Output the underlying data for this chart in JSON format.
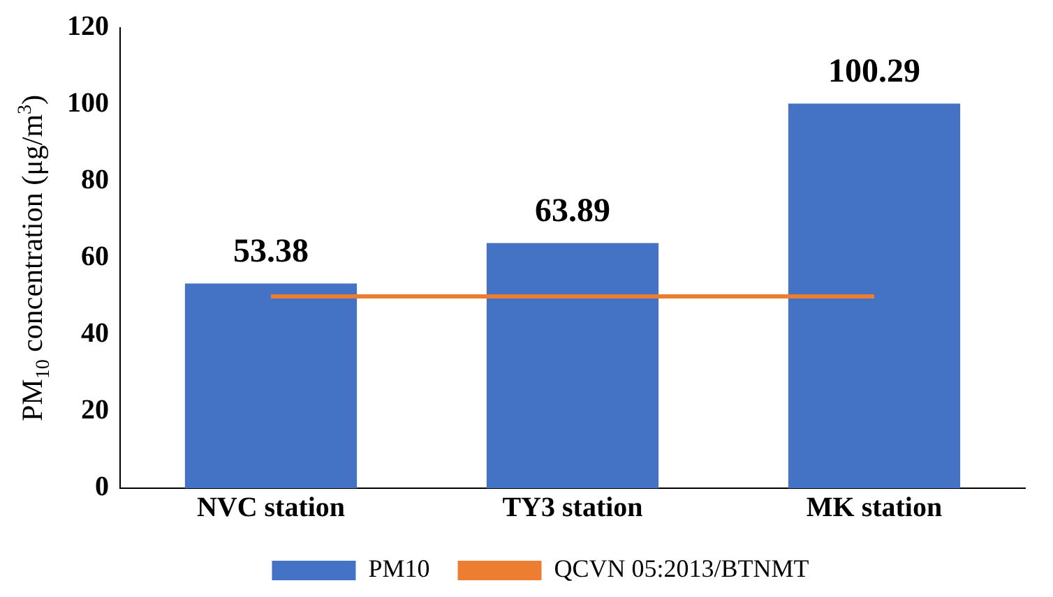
{
  "chart_data": {
    "type": "bar",
    "ylabel": "PM$_{10}$ concentration (μg/m$^{3}$)",
    "categories": [
      "NVC station",
      "TY3 station",
      "MK station"
    ],
    "series": [
      {
        "name": "PM10",
        "color": "#4472c4",
        "values": [
          53.38,
          63.89,
          100.29
        ],
        "value_labels": [
          "53.38",
          "63.89",
          "100.29"
        ]
      },
      {
        "name": "QCVN 05:2013/BTNMT",
        "type": "line",
        "color": "#ed7d31",
        "values": [
          50,
          50,
          50
        ]
      }
    ],
    "ylim": [
      0,
      120
    ],
    "yticks": [
      0,
      20,
      40,
      60,
      80,
      100,
      120
    ],
    "grid": false,
    "legend": "bottom",
    "marker": "none"
  }
}
